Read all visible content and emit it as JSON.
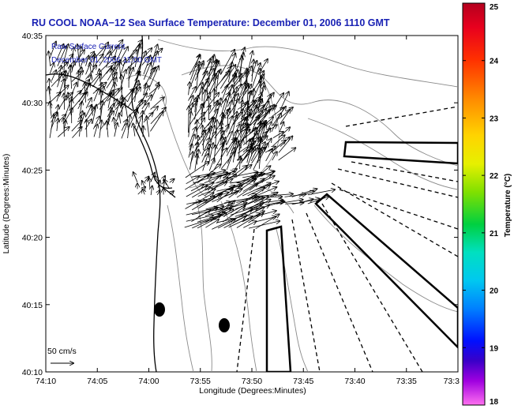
{
  "title": "RU COOL  NOAA−12  Sea Surface Temperature:  December 01, 2006 1110 GMT",
  "annotation": {
    "line1": "Raw Surface Current",
    "line2": "December 01, 2006 11:00 GMT"
  },
  "axes": {
    "xlabel": "Longitude (Degrees:Minutes)",
    "ylabel": "Latitude (Degrees:Minutes)",
    "xticks": [
      "74:10",
      "74:05",
      "74:00",
      "73:55",
      "73:50",
      "73:45",
      "73:40",
      "73:35",
      "73:3"
    ],
    "yticks": [
      "40:35",
      "40:30",
      "40:25",
      "40:20",
      "40:15",
      "40:10"
    ]
  },
  "scale_label": "50 cm/s",
  "colorbar": {
    "label": "Temperature (°C)",
    "ticks": [
      "25",
      "24",
      "23",
      "22",
      "21",
      "20",
      "19",
      "18"
    ],
    "colors": [
      "#e0001e",
      "#ff2a00",
      "#ff8a00",
      "#ffd000",
      "#e8f000",
      "#7ee000",
      "#00d040",
      "#00e0c0",
      "#00c8f0",
      "#0080ff",
      "#0020ff",
      "#2000d0",
      "#8000e0",
      "#ff60f0"
    ]
  },
  "chart_data": {
    "type": "map",
    "xlim": [
      "74:10",
      "73:30"
    ],
    "ylim": [
      "40:10",
      "40:35"
    ],
    "colorbar_range": [
      18,
      25
    ],
    "markers": [
      {
        "name": "dot",
        "lon": "73:59",
        "lat": "40:14.6"
      },
      {
        "name": "dot",
        "lon": "73:52.4",
        "lat": "40:13.5"
      }
    ]
  }
}
